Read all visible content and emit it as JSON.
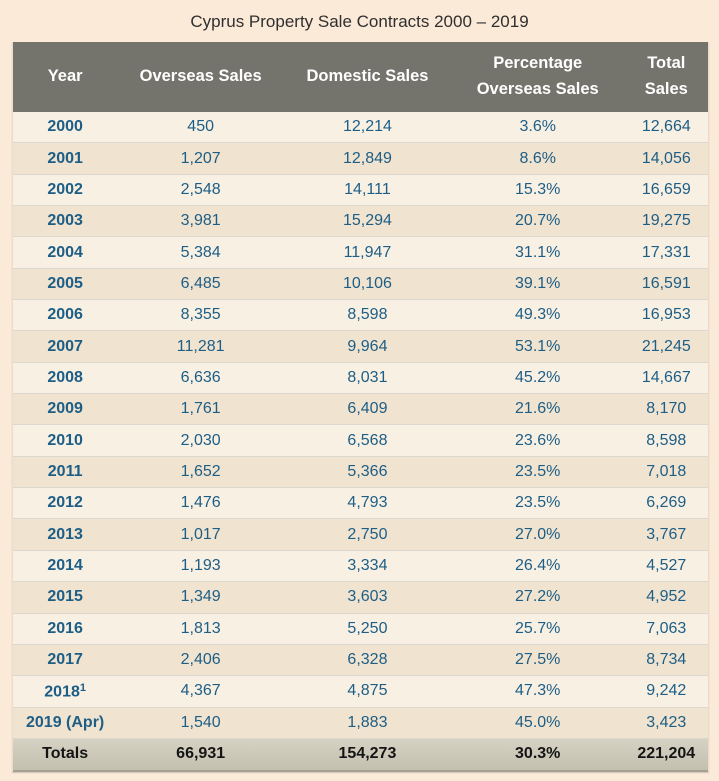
{
  "title": "Cyprus Property Sale Contracts 2000 – 2019",
  "colors": {
    "page_bg": "#fcead9",
    "header_bg": "#74736c",
    "header_text": "#ffffff",
    "row_light": "#f8f0e3",
    "row_dark": "#f0e3d0",
    "data_text": "#1d5e86",
    "separator": "#dcd8d0",
    "totals_top": "#d6d2c3",
    "totals_bottom": "#c4c0b0",
    "totals_text": "#141414",
    "title_text": "#2f2f2f"
  },
  "table": {
    "columns": [
      "Year",
      "Overseas Sales",
      "Domestic Sales",
      "Percentage Overseas Sales",
      "Total Sales"
    ],
    "rows": [
      {
        "year": "2000",
        "overseas": "450",
        "domestic": "12,214",
        "percentage": "3.6%",
        "total": "12,664"
      },
      {
        "year": "2001",
        "overseas": "1,207",
        "domestic": "12,849",
        "percentage": "8.6%",
        "total": "14,056"
      },
      {
        "year": "2002",
        "overseas": "2,548",
        "domestic": "14,111",
        "percentage": "15.3%",
        "total": "16,659"
      },
      {
        "year": "2003",
        "overseas": "3,981",
        "domestic": "15,294",
        "percentage": "20.7%",
        "total": "19,275"
      },
      {
        "year": "2004",
        "overseas": "5,384",
        "domestic": "11,947",
        "percentage": "31.1%",
        "total": "17,331"
      },
      {
        "year": "2005",
        "overseas": "6,485",
        "domestic": "10,106",
        "percentage": "39.1%",
        "total": "16,591"
      },
      {
        "year": "2006",
        "overseas": "8,355",
        "domestic": "8,598",
        "percentage": "49.3%",
        "total": "16,953"
      },
      {
        "year": "2007",
        "overseas": "11,281",
        "domestic": "9,964",
        "percentage": "53.1%",
        "total": "21,245"
      },
      {
        "year": "2008",
        "overseas": "6,636",
        "domestic": "8,031",
        "percentage": "45.2%",
        "total": "14,667"
      },
      {
        "year": "2009",
        "overseas": "1,761",
        "domestic": "6,409",
        "percentage": "21.6%",
        "total": "8,170"
      },
      {
        "year": "2010",
        "overseas": "2,030",
        "domestic": "6,568",
        "percentage": "23.6%",
        "total": "8,598"
      },
      {
        "year": "2011",
        "overseas": "1,652",
        "domestic": "5,366",
        "percentage": "23.5%",
        "total": "7,018"
      },
      {
        "year": "2012",
        "overseas": "1,476",
        "domestic": "4,793",
        "percentage": "23.5%",
        "total": "6,269"
      },
      {
        "year": "2013",
        "overseas": "1,017",
        "domestic": "2,750",
        "percentage": "27.0%",
        "total": "3,767"
      },
      {
        "year": "2014",
        "overseas": "1,193",
        "domestic": "3,334",
        "percentage": "26.4%",
        "total": "4,527"
      },
      {
        "year": "2015",
        "overseas": "1,349",
        "domestic": "3,603",
        "percentage": "27.2%",
        "total": "4,952"
      },
      {
        "year": "2016",
        "overseas": "1,813",
        "domestic": "5,250",
        "percentage": "25.7%",
        "total": "7,063"
      },
      {
        "year": "2017",
        "overseas": "2,406",
        "domestic": "6,328",
        "percentage": "27.5%",
        "total": "8,734"
      },
      {
        "year": "2018",
        "year_sup": "1",
        "overseas": "4,367",
        "domestic": "4,875",
        "percentage": "47.3%",
        "total": "9,242"
      },
      {
        "year": "2019 (Apr)",
        "overseas": "1,540",
        "domestic": "1,883",
        "percentage": "45.0%",
        "total": "3,423"
      }
    ],
    "totals": {
      "label": "Totals",
      "overseas": "66,931",
      "domestic": "154,273",
      "percentage": "30.3%",
      "total": "221,204"
    }
  },
  "chart_data": {
    "type": "table",
    "title": "Cyprus Property Sale Contracts 2000 – 2019",
    "columns": [
      "Year",
      "Overseas Sales",
      "Domestic Sales",
      "Percentage Overseas Sales",
      "Total Sales"
    ],
    "categories": [
      "2000",
      "2001",
      "2002",
      "2003",
      "2004",
      "2005",
      "2006",
      "2007",
      "2008",
      "2009",
      "2010",
      "2011",
      "2012",
      "2013",
      "2014",
      "2015",
      "2016",
      "2017",
      "2018",
      "2019 (Apr)"
    ],
    "series": [
      {
        "name": "Overseas Sales",
        "values": [
          450,
          1207,
          2548,
          3981,
          5384,
          6485,
          8355,
          11281,
          6636,
          1761,
          2030,
          1652,
          1476,
          1017,
          1193,
          1349,
          1813,
          2406,
          4367,
          1540
        ]
      },
      {
        "name": "Domestic Sales",
        "values": [
          12214,
          12849,
          14111,
          15294,
          11947,
          10106,
          8598,
          9964,
          8031,
          6409,
          6568,
          5366,
          4793,
          2750,
          3334,
          3603,
          5250,
          6328,
          4875,
          1883
        ]
      },
      {
        "name": "Percentage Overseas Sales",
        "values": [
          3.6,
          8.6,
          15.3,
          20.7,
          31.1,
          39.1,
          49.3,
          53.1,
          45.2,
          21.6,
          23.6,
          23.5,
          23.5,
          27.0,
          26.4,
          27.2,
          25.7,
          27.5,
          47.3,
          45.0
        ]
      },
      {
        "name": "Total Sales",
        "values": [
          12664,
          14056,
          16659,
          19275,
          17331,
          16591,
          16953,
          21245,
          14667,
          8170,
          8598,
          7018,
          6269,
          3767,
          4527,
          4952,
          7063,
          8734,
          9242,
          3423
        ]
      }
    ],
    "totals": {
      "Overseas Sales": 66931,
      "Domestic Sales": 154273,
      "Percentage Overseas Sales": 30.3,
      "Total Sales": 221204
    },
    "footnote_marker_on": "2018"
  }
}
